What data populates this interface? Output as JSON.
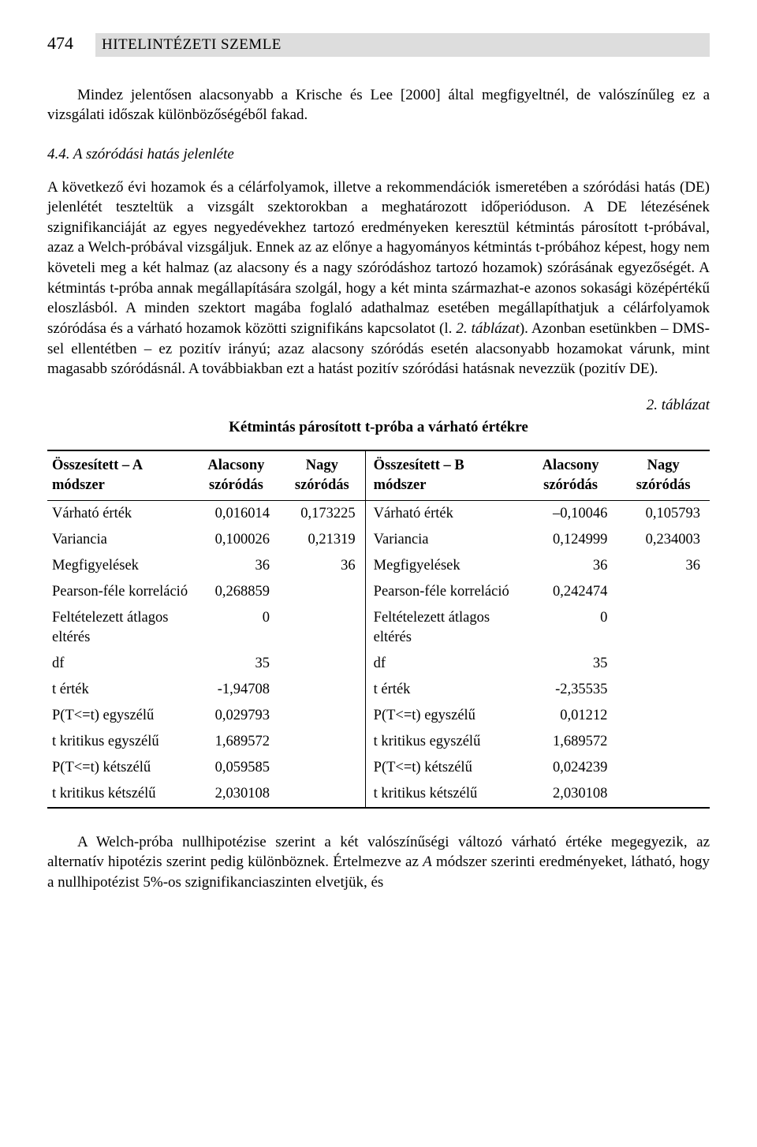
{
  "page_number": "474",
  "banner": "HITELINTÉZETI SZEMLE",
  "intro": "Mindez jelentősen alacsonyabb a Krische és Lee [2000] által megfigyeltnél, de valószínűleg ez a vizsgálati időszak különbözőségéből fakad.",
  "subheading": "4.4. A szóródási hatás jelenléte",
  "body1": "A következő évi hozamok és a célárfolyamok, illetve a rekommendációk ismeretében a szóródási hatás (DE) jelenlétét teszteltük a vizsgált szektorokban a meghatározott időperióduson. A DE létezésének szignifikanciáját az egyes negyedévekhez tartozó eredményeken keresztül kétmintás párosított t-próbával, azaz a Welch-próbával vizsgáljuk. Ennek az az előnye a hagyományos kétmintás t-próbához képest, hogy nem követeli meg a két halmaz (az alacsony és a nagy szóródáshoz tartozó hozamok) szórásának egyezőségét. A kétmintás t-próba annak megállapítására szolgál, hogy a két minta származhat-e azonos sokasági középértékű eloszlásból. A minden szektort magába foglaló adathalmaz esetében megállapíthatjuk a célárfolyamok szóródása és a várható hozamok közötti szignifikáns kapcsolatot (l. ",
  "body1_it": "2. táblázat",
  "body1_tail": "). Azonban esetünkben – DMS-sel ellentétben – ez pozitív irányú; azaz alacsony szóródás esetén alacsonyabb hozamokat várunk, mint magasabb szóródásnál. A továbbiakban ezt a hatást pozitív szóródási hatásnak nevezzük (pozitív DE).",
  "table_label": "2. táblázat",
  "table_title": "Kétmintás párosított t-próba a várható értékre",
  "th": {
    "left": "Összesített – A módszer",
    "low": "Alacsony szóródás",
    "high": "Nagy szóródás",
    "right": "Összesített – B módszer",
    "low2": "Alacsony szóródás",
    "high2": "Nagy szóródás"
  },
  "rows": [
    {
      "la": "Várható érték",
      "a1": "0,016014",
      "a2": "0,173225",
      "lb": "Várható érték",
      "b1": "–0,10046",
      "b2": "0,105793"
    },
    {
      "la": "Variancia",
      "a1": "0,100026",
      "a2": "0,21319",
      "lb": "Variancia",
      "b1": "0,124999",
      "b2": "0,234003"
    },
    {
      "la": "Megfigyelések",
      "a1": "36",
      "a2": "36",
      "lb": "Megfigyelések",
      "b1": "36",
      "b2": "36"
    },
    {
      "la": "Pearson-féle korreláció",
      "a1": "0,268859",
      "a2": "",
      "lb": "Pearson-féle korreláció",
      "b1": "0,242474",
      "b2": ""
    },
    {
      "la": "Feltételezett átlagos eltérés",
      "a1": "0",
      "a2": "",
      "lb": "Feltételezett átlagos eltérés",
      "b1": "0",
      "b2": ""
    },
    {
      "la": "df",
      "a1": "35",
      "a2": "",
      "lb": "df",
      "b1": "35",
      "b2": ""
    },
    {
      "la": "t érték",
      "a1": "-1,94708",
      "a2": "",
      "lb": "t érték",
      "b1": "-2,35535",
      "b2": ""
    },
    {
      "la": "P(T<=t) egyszélű",
      "a1": "0,029793",
      "a2": "",
      "lb": "P(T<=t) egyszélű",
      "b1": "0,01212",
      "b2": ""
    },
    {
      "la": "t kritikus egyszélű",
      "a1": "1,689572",
      "a2": "",
      "lb": "t kritikus egyszélű",
      "b1": "1,689572",
      "b2": ""
    },
    {
      "la": "P(T<=t) kétszélű",
      "a1": "0,059585",
      "a2": "",
      "lb": "P(T<=t) kétszélű",
      "b1": "0,024239",
      "b2": ""
    },
    {
      "la": "t kritikus kétszélű",
      "a1": "2,030108",
      "a2": "",
      "lb": "t kritikus kétszélű",
      "b1": "2,030108",
      "b2": ""
    }
  ],
  "after1": "A Welch-próba nullhipotézise szerint a két valószínűségi változó várható értéke megegyezik, az alternatív hipotézis szerint pedig különböznek. Értelmezve az ",
  "after_it": "A",
  "after2": " módszer szerinti eredményeket, látható, hogy a nullhipotézist 5%-os szignifikanciaszinten elvetjük, és",
  "colwidths": [
    "22%",
    "13%",
    "13%",
    "24%",
    "14%",
    "14%"
  ],
  "colors": {
    "text": "#000000",
    "background": "#ffffff",
    "banner_bg": "#dddddd",
    "rule": "#000000"
  }
}
